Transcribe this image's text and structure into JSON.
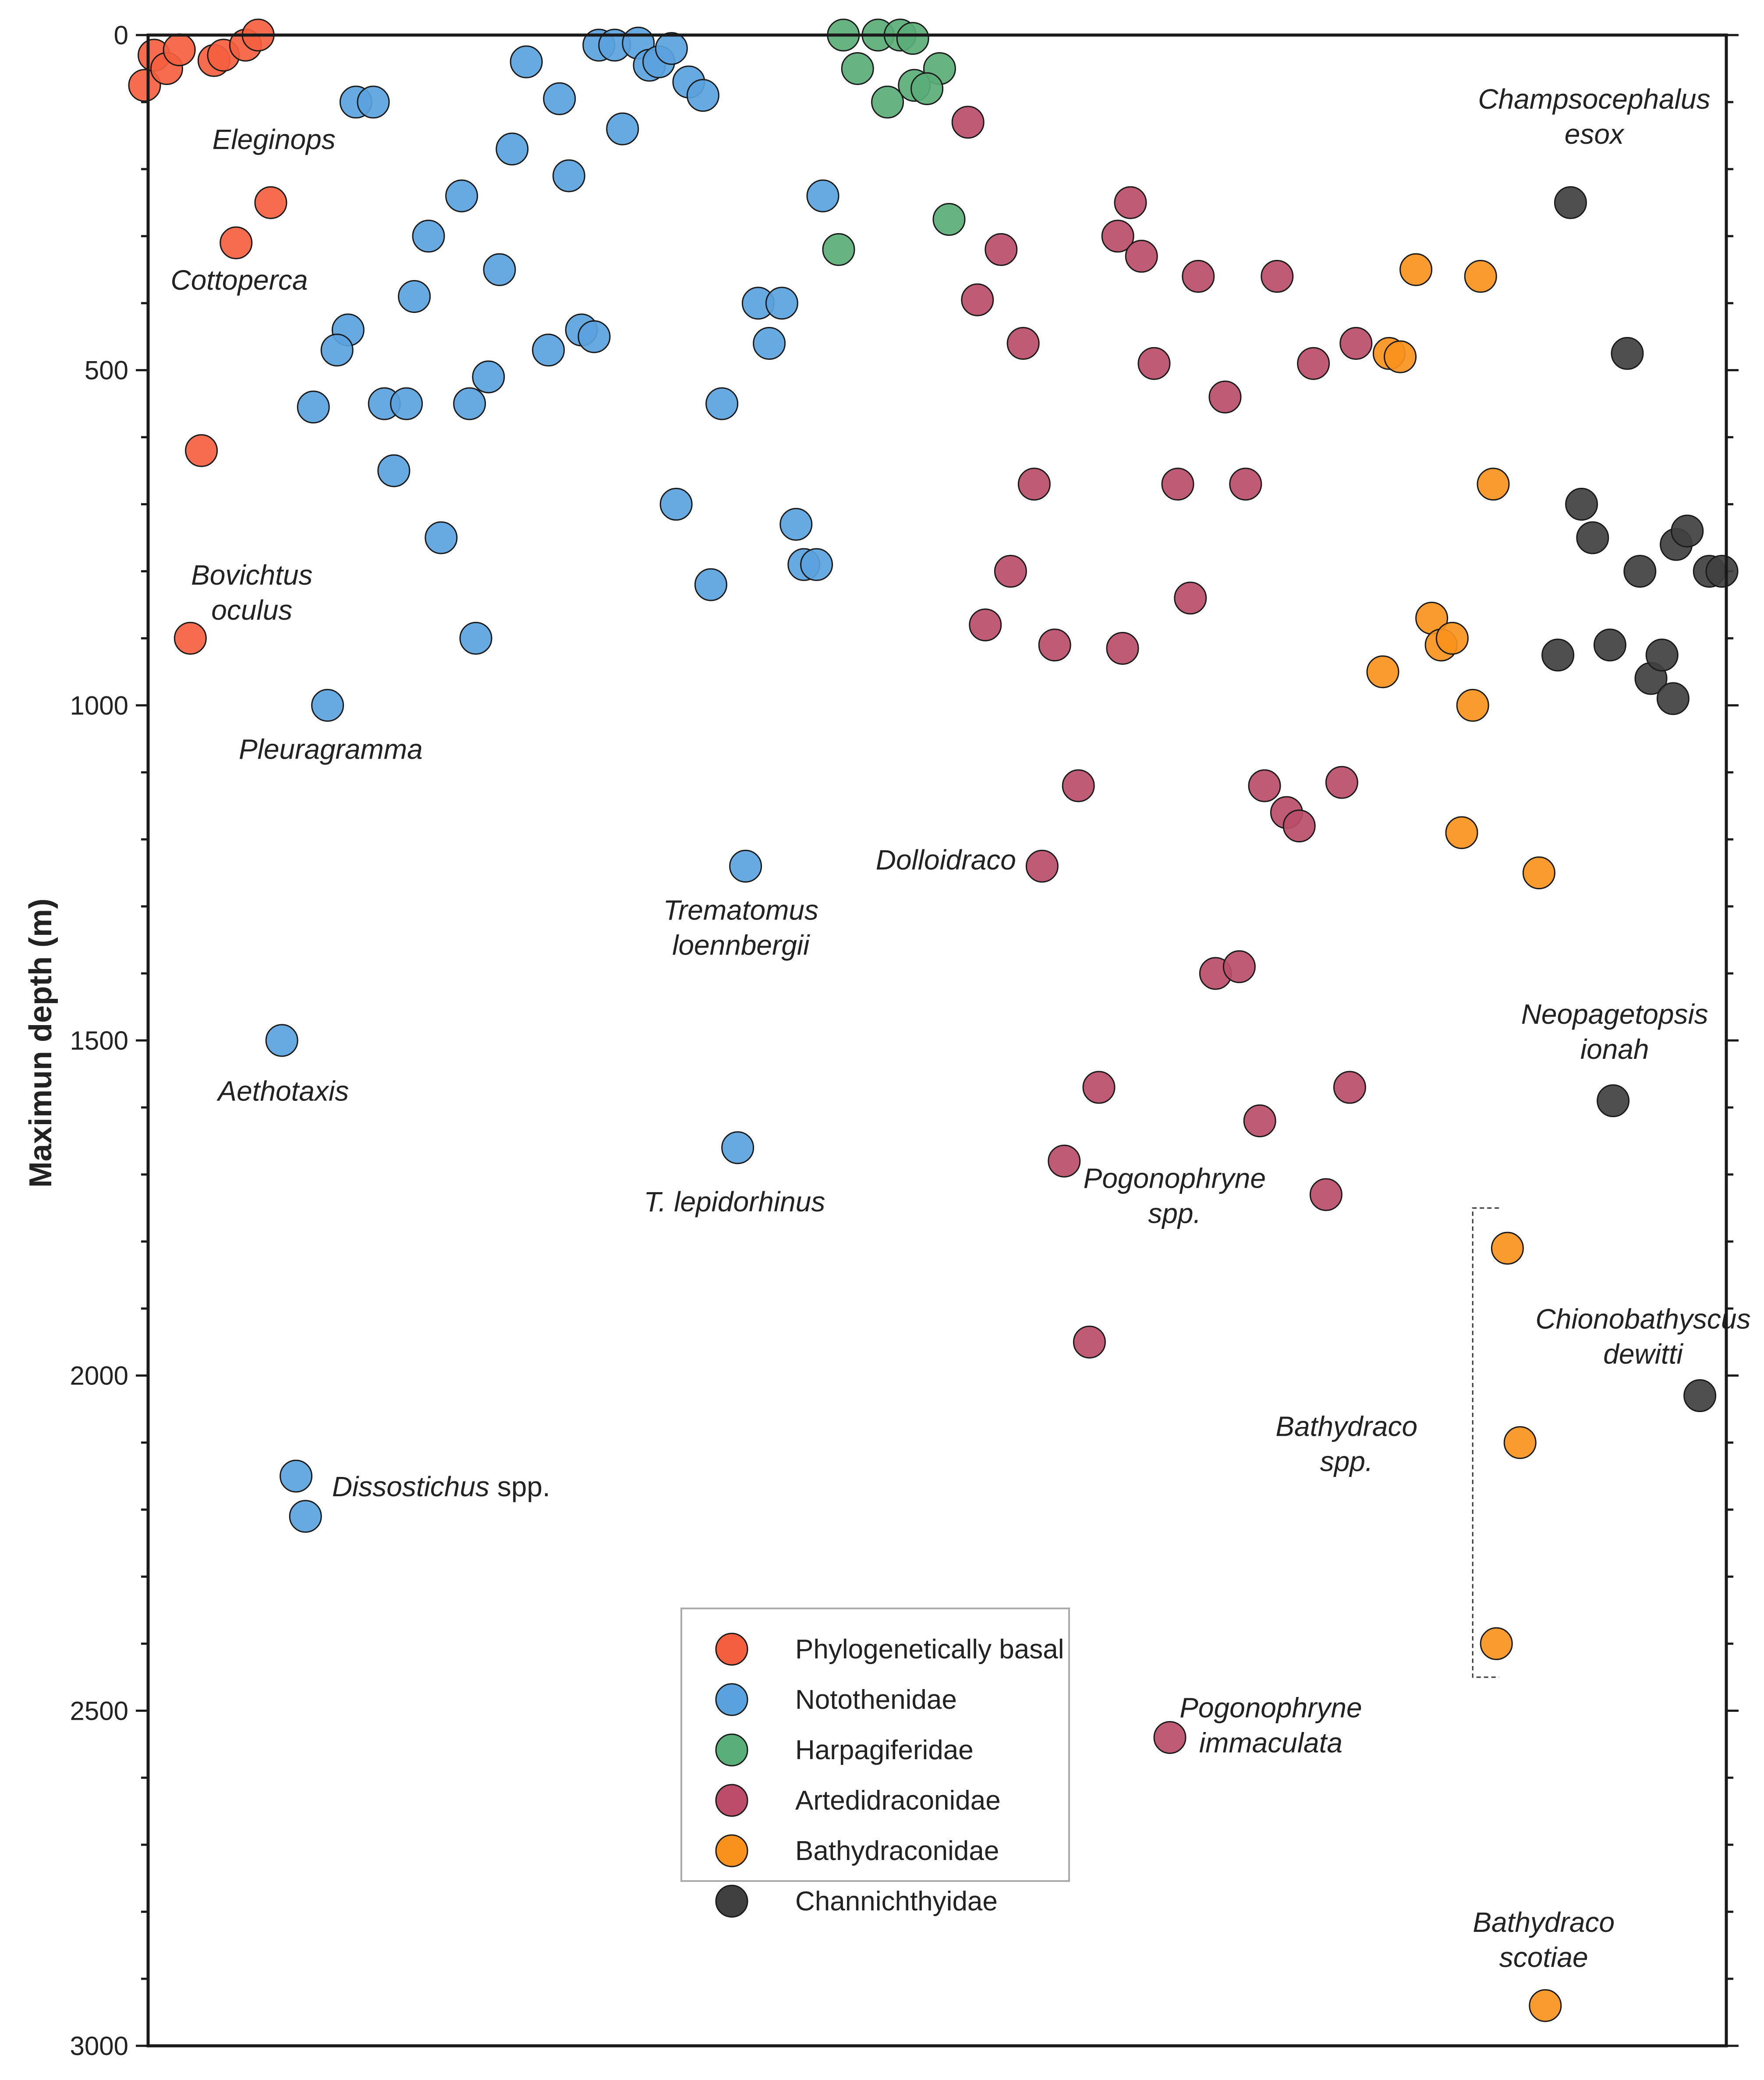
{
  "chart_data": {
    "type": "scatter",
    "title": "",
    "xlabel": "",
    "ylabel": "Maximun depth (m)",
    "ylim": [
      0,
      3000
    ],
    "y_inverted": true,
    "x_ticks_shown": false,
    "y_ticks": [
      0,
      500,
      1000,
      1500,
      2000,
      2500,
      3000
    ],
    "y_tick_labels": [
      "0",
      "500",
      "1000",
      "1500",
      "2000",
      "2500",
      "3000"
    ],
    "xlim": [
      0,
      100
    ],
    "series": [
      {
        "name": "Phylogenetically basal",
        "color": "#f4603f",
        "points": [
          {
            "x": 0.0,
            "y": 75
          },
          {
            "x": 0.6,
            "y": 30
          },
          {
            "x": 1.4,
            "y": 50
          },
          {
            "x": 2.2,
            "y": 22
          },
          {
            "x": 4.4,
            "y": 38
          },
          {
            "x": 5.0,
            "y": 30
          },
          {
            "x": 6.4,
            "y": 15
          },
          {
            "x": 7.2,
            "y": 0
          },
          {
            "x": 8.0,
            "y": 250
          },
          {
            "x": 5.8,
            "y": 310
          },
          {
            "x": 3.6,
            "y": 620
          },
          {
            "x": 2.9,
            "y": 900
          }
        ]
      },
      {
        "name": "Notothenidae",
        "color": "#5aa2de",
        "points": [
          {
            "x": 13.4,
            "y": 100
          },
          {
            "x": 14.5,
            "y": 100
          },
          {
            "x": 24.2,
            "y": 40
          },
          {
            "x": 26.3,
            "y": 95
          },
          {
            "x": 23.3,
            "y": 170
          },
          {
            "x": 26.9,
            "y": 210
          },
          {
            "x": 20.1,
            "y": 240
          },
          {
            "x": 18.0,
            "y": 300
          },
          {
            "x": 22.5,
            "y": 350
          },
          {
            "x": 17.1,
            "y": 390
          },
          {
            "x": 12.9,
            "y": 440
          },
          {
            "x": 12.2,
            "y": 470
          },
          {
            "x": 25.6,
            "y": 470
          },
          {
            "x": 27.7,
            "y": 440
          },
          {
            "x": 28.5,
            "y": 450
          },
          {
            "x": 21.8,
            "y": 510
          },
          {
            "x": 10.7,
            "y": 555
          },
          {
            "x": 15.2,
            "y": 550
          },
          {
            "x": 16.6,
            "y": 550
          },
          {
            "x": 20.6,
            "y": 550
          },
          {
            "x": 15.8,
            "y": 650
          },
          {
            "x": 18.8,
            "y": 750
          },
          {
            "x": 21.0,
            "y": 900
          },
          {
            "x": 11.6,
            "y": 1000
          },
          {
            "x": 28.8,
            "y": 15
          },
          {
            "x": 29.8,
            "y": 15
          },
          {
            "x": 31.3,
            "y": 12
          },
          {
            "x": 32.0,
            "y": 45
          },
          {
            "x": 32.6,
            "y": 40
          },
          {
            "x": 33.4,
            "y": 20
          },
          {
            "x": 34.5,
            "y": 70
          },
          {
            "x": 35.4,
            "y": 90
          },
          {
            "x": 30.3,
            "y": 140
          },
          {
            "x": 43.0,
            "y": 240
          },
          {
            "x": 38.9,
            "y": 400
          },
          {
            "x": 40.4,
            "y": 400
          },
          {
            "x": 39.6,
            "y": 460
          },
          {
            "x": 36.6,
            "y": 550
          },
          {
            "x": 33.7,
            "y": 700
          },
          {
            "x": 41.3,
            "y": 730
          },
          {
            "x": 41.8,
            "y": 790
          },
          {
            "x": 42.6,
            "y": 790
          },
          {
            "x": 35.9,
            "y": 820
          },
          {
            "x": 38.1,
            "y": 1240
          },
          {
            "x": 37.6,
            "y": 1660
          },
          {
            "x": 8.7,
            "y": 1500
          },
          {
            "x": 9.6,
            "y": 2150
          },
          {
            "x": 10.2,
            "y": 2210
          }
        ]
      },
      {
        "name": "Harpagiferidae",
        "color": "#5aae77",
        "points": [
          {
            "x": 44.3,
            "y": 0
          },
          {
            "x": 46.5,
            "y": 0
          },
          {
            "x": 47.9,
            "y": 0
          },
          {
            "x": 48.7,
            "y": 5
          },
          {
            "x": 45.2,
            "y": 50
          },
          {
            "x": 50.4,
            "y": 50
          },
          {
            "x": 48.8,
            "y": 75
          },
          {
            "x": 49.6,
            "y": 80
          },
          {
            "x": 47.1,
            "y": 100
          },
          {
            "x": 51.0,
            "y": 275
          },
          {
            "x": 44.0,
            "y": 320
          }
        ]
      },
      {
        "name": "Artedidraconidae",
        "color": "#bb4d6a",
        "points": [
          {
            "x": 52.2,
            "y": 130
          },
          {
            "x": 62.5,
            "y": 250
          },
          {
            "x": 61.7,
            "y": 300
          },
          {
            "x": 63.2,
            "y": 330
          },
          {
            "x": 54.3,
            "y": 320
          },
          {
            "x": 66.8,
            "y": 360
          },
          {
            "x": 71.8,
            "y": 360
          },
          {
            "x": 52.8,
            "y": 395
          },
          {
            "x": 55.7,
            "y": 460
          },
          {
            "x": 64.0,
            "y": 490
          },
          {
            "x": 74.1,
            "y": 490
          },
          {
            "x": 76.8,
            "y": 460
          },
          {
            "x": 68.5,
            "y": 540
          },
          {
            "x": 56.4,
            "y": 670
          },
          {
            "x": 65.5,
            "y": 670
          },
          {
            "x": 69.8,
            "y": 670
          },
          {
            "x": 54.9,
            "y": 800
          },
          {
            "x": 66.3,
            "y": 840
          },
          {
            "x": 53.3,
            "y": 880
          },
          {
            "x": 57.7,
            "y": 910
          },
          {
            "x": 62.0,
            "y": 915
          },
          {
            "x": 59.2,
            "y": 1120
          },
          {
            "x": 71.0,
            "y": 1120
          },
          {
            "x": 72.4,
            "y": 1160
          },
          {
            "x": 73.2,
            "y": 1180
          },
          {
            "x": 75.9,
            "y": 1115
          },
          {
            "x": 56.9,
            "y": 1240
          },
          {
            "x": 67.9,
            "y": 1400
          },
          {
            "x": 69.4,
            "y": 1390
          },
          {
            "x": 60.5,
            "y": 1570
          },
          {
            "x": 70.7,
            "y": 1620
          },
          {
            "x": 76.4,
            "y": 1570
          },
          {
            "x": 58.3,
            "y": 1680
          },
          {
            "x": 74.9,
            "y": 1730
          },
          {
            "x": 59.9,
            "y": 1950
          },
          {
            "x": 65.0,
            "y": 2540
          }
        ]
      },
      {
        "name": "Bathydraconidae",
        "color": "#f9921c",
        "points": [
          {
            "x": 80.6,
            "y": 350
          },
          {
            "x": 84.7,
            "y": 360
          },
          {
            "x": 78.9,
            "y": 475
          },
          {
            "x": 79.6,
            "y": 480
          },
          {
            "x": 85.5,
            "y": 670
          },
          {
            "x": 81.6,
            "y": 870
          },
          {
            "x": 82.2,
            "y": 910
          },
          {
            "x": 82.9,
            "y": 900
          },
          {
            "x": 78.5,
            "y": 950
          },
          {
            "x": 84.2,
            "y": 1000
          },
          {
            "x": 83.5,
            "y": 1190
          },
          {
            "x": 88.4,
            "y": 1250
          },
          {
            "x": 86.4,
            "y": 1810
          },
          {
            "x": 87.2,
            "y": 2100
          },
          {
            "x": 85.7,
            "y": 2400
          },
          {
            "x": 88.8,
            "y": 2940
          }
        ]
      },
      {
        "name": "Channichthyidae",
        "color": "#404040",
        "points": [
          {
            "x": 90.4,
            "y": 250
          },
          {
            "x": 94.0,
            "y": 475
          },
          {
            "x": 91.1,
            "y": 700
          },
          {
            "x": 91.8,
            "y": 750
          },
          {
            "x": 94.8,
            "y": 800
          },
          {
            "x": 97.1,
            "y": 760
          },
          {
            "x": 97.8,
            "y": 740
          },
          {
            "x": 99.2,
            "y": 800
          },
          {
            "x": 100.0,
            "y": 800
          },
          {
            "x": 89.6,
            "y": 925
          },
          {
            "x": 92.9,
            "y": 910
          },
          {
            "x": 95.5,
            "y": 960
          },
          {
            "x": 96.2,
            "y": 925
          },
          {
            "x": 96.9,
            "y": 990
          },
          {
            "x": 93.1,
            "y": 1590
          },
          {
            "x": 98.6,
            "y": 2030
          }
        ]
      }
    ],
    "annotations": [
      {
        "lines": [
          "Eleginops"
        ],
        "x": 8.2,
        "y": 170
      },
      {
        "lines": [
          "Cottoperca"
        ],
        "x": 6.0,
        "y": 380
      },
      {
        "lines": [
          "Bovichtus",
          "oculus"
        ],
        "x": 6.8,
        "y": 820
      },
      {
        "lines": [
          "Pleuragramma"
        ],
        "x": 11.8,
        "y": 1080
      },
      {
        "lines": [
          "Aethotaxis"
        ],
        "x": 8.8,
        "y": 1590
      },
      {
        "lines": [
          "Dissostichus"
        ],
        "suffix": " spp.",
        "x": 18.8,
        "y": 2180
      },
      {
        "lines": [
          "Trematomus",
          "loennbergii"
        ],
        "x": 37.8,
        "y": 1320
      },
      {
        "lines": [
          "T. lepidorhinus"
        ],
        "x": 37.4,
        "y": 1755
      },
      {
        "lines": [
          "Dolloidraco"
        ],
        "x": 50.8,
        "y": 1245
      },
      {
        "lines": [
          "Pogonophryne",
          "spp."
        ],
        "x": 65.3,
        "y": 1720
      },
      {
        "lines": [
          "Pogonophryne",
          "immaculata"
        ],
        "x": 71.4,
        "y": 2510
      },
      {
        "lines": [
          "Champsocephalus",
          "esox"
        ],
        "x": 91.9,
        "y": 110
      },
      {
        "lines": [
          "Neopagetopsis",
          "ionah"
        ],
        "x": 93.2,
        "y": 1475
      },
      {
        "lines": [
          "Chionobathyscus",
          "dewitti"
        ],
        "x": 95.0,
        "y": 1930
      },
      {
        "lines": [
          "Bathydraco",
          "spp."
        ],
        "x": 76.2,
        "y": 2090
      },
      {
        "lines": [
          "Bathydraco",
          "scotiae"
        ],
        "x": 88.7,
        "y": 2830
      }
    ],
    "bracket": {
      "x": 84.2,
      "y_start": 1750,
      "y_end": 2450
    },
    "legend": {
      "location": "bottom-center",
      "entries": [
        "Phylogenetically basal",
        "Notothenidae",
        "Harpagiferidae",
        "Artedidraconidae",
        "Bathydraconidae",
        "Channichthyidae"
      ]
    }
  }
}
